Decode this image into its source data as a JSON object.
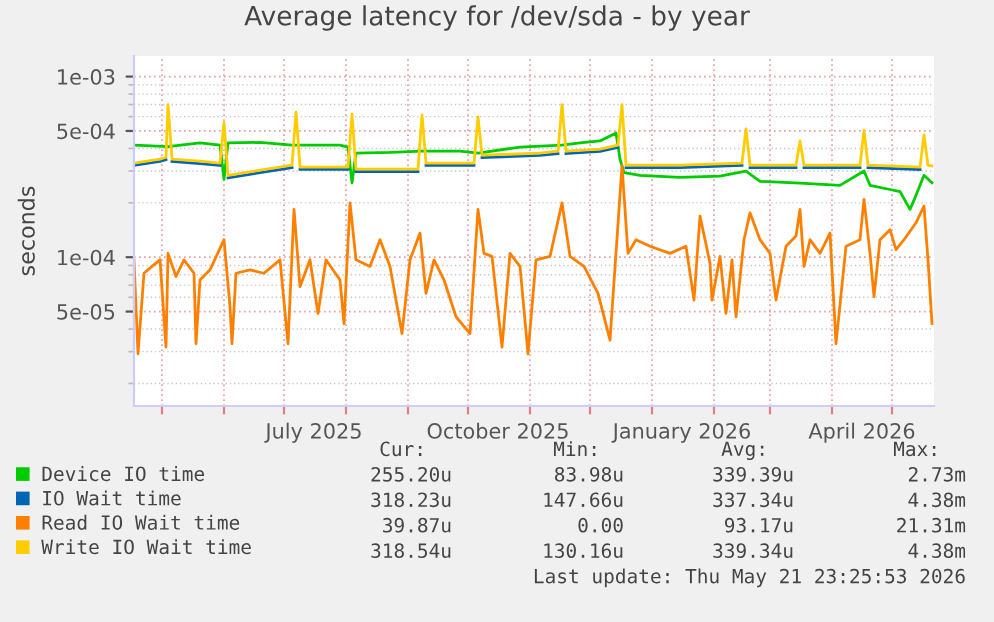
{
  "chart_data": {
    "type": "line",
    "title": "Average latency for /dev/sda - by year",
    "ylabel": "seconds",
    "log": "y",
    "grid": true,
    "legend": "bottom",
    "marker": "none",
    "line_style": "solid",
    "xlim": [
      "2025-04-17",
      "2026-05-22"
    ],
    "xticks": [
      {
        "value": "2025-05-01",
        "label": null
      },
      {
        "value": "2025-06-01",
        "label": null
      },
      {
        "value": "2025-07-01",
        "label": null
      },
      {
        "value": "2025-07-16",
        "label": "July 2025"
      },
      {
        "value": "2025-08-01",
        "label": null
      },
      {
        "value": "2025-09-01",
        "label": null
      },
      {
        "value": "2025-10-01",
        "label": null
      },
      {
        "value": "2025-10-16",
        "label": "October 2025"
      },
      {
        "value": "2025-11-01",
        "label": null
      },
      {
        "value": "2025-12-01",
        "label": null
      },
      {
        "value": "2026-01-01",
        "label": null
      },
      {
        "value": "2026-01-16",
        "label": "January 2026"
      },
      {
        "value": "2026-02-01",
        "label": null
      },
      {
        "value": "2026-03-01",
        "label": null
      },
      {
        "value": "2026-04-01",
        "label": null
      },
      {
        "value": "2026-04-16",
        "label": "April 2026"
      },
      {
        "value": "2026-05-01",
        "label": null
      }
    ],
    "ylim": [
      1.5e-05,
      0.0013
    ],
    "yticks": [
      {
        "value": 5e-05,
        "label": "5e-05"
      },
      {
        "value": 0.0001,
        "label": "1e-04"
      },
      {
        "value": 0.0005,
        "label": "5e-04"
      },
      {
        "value": 0.001,
        "label": "1e-03"
      }
    ],
    "series": [
      {
        "name": "Device IO time",
        "color": "#00cc00",
        "x": [
          "2025-04-17",
          "2025-05-04",
          "2025-05-20",
          "2025-05-30",
          "2025-06-01",
          "2025-06-03",
          "2025-06-19",
          "2025-07-05",
          "2025-07-09",
          "2025-07-29",
          "2025-08-02",
          "2025-08-04",
          "2025-08-06",
          "2025-08-23",
          "2025-09-08",
          "2025-09-27",
          "2025-10-06",
          "2025-10-27",
          "2025-11-17",
          "2025-11-26",
          "2025-12-06",
          "2025-12-14",
          "2025-12-16",
          "2025-12-18",
          "2025-12-26",
          "2026-01-15",
          "2026-02-04",
          "2026-02-17",
          "2026-02-24",
          "2026-03-16",
          "2026-04-05",
          "2026-04-17",
          "2026-04-20",
          "2026-04-30",
          "2026-05-05",
          "2026-05-10",
          "2026-05-13",
          "2026-05-17",
          "2026-05-21"
        ],
        "values": [
          0.000417,
          0.00041,
          0.000429,
          0.000417,
          0.00027,
          0.000429,
          0.000432,
          0.000417,
          0.000417,
          0.000417,
          0.000407,
          0.000258,
          0.000377,
          0.00038,
          0.000387,
          0.000387,
          0.000377,
          0.000407,
          0.000417,
          0.000429,
          0.00044,
          0.000487,
          0.000349,
          0.000294,
          0.000284,
          0.000277,
          0.000281,
          0.0003,
          0.000263,
          0.000257,
          0.00025,
          0.0003,
          0.00025,
          0.000237,
          0.000231,
          0.000184,
          0.00022,
          0.000284,
          0.000258
        ]
      },
      {
        "name": "IO Wait time",
        "color": "#0066b3",
        "x": [
          "2025-04-17",
          "2025-04-30",
          "2025-05-03",
          "2025-05-04",
          "2025-05-06",
          "2025-05-20",
          "2025-05-30",
          "2025-06-01",
          "2025-06-03",
          "2025-07-05",
          "2025-07-07",
          "2025-07-09",
          "2025-08-02",
          "2025-08-04",
          "2025-08-06",
          "2025-09-06",
          "2025-09-08",
          "2025-09-10",
          "2025-10-04",
          "2025-10-06",
          "2025-10-08",
          "2025-11-06",
          "2025-11-15",
          "2025-11-17",
          "2025-11-19",
          "2025-12-06",
          "2025-12-15",
          "2025-12-17",
          "2025-12-19",
          "2026-01-15",
          "2026-02-15",
          "2026-02-17",
          "2026-02-19",
          "2026-03-14",
          "2026-03-16",
          "2026-03-18",
          "2026-04-15",
          "2026-04-17",
          "2026-04-19",
          "2026-05-15"
        ],
        "values": [
          0.000322,
          0.000339,
          0.000347,
          null,
          0.000339,
          0.00033,
          0.000322,
          null,
          0.000275,
          0.000313,
          null,
          0.000306,
          0.000306,
          null,
          0.000298,
          0.000298,
          null,
          0.000322,
          0.000322,
          null,
          0.000356,
          0.000366,
          0.000375,
          null,
          0.000375,
          0.000385,
          0.000405,
          null,
          0.000313,
          0.000313,
          0.000322,
          null,
          0.000313,
          0.000313,
          null,
          0.000313,
          0.000313,
          null,
          0.000313,
          0.000306
        ]
      },
      {
        "name": "Read IO Wait time",
        "color": "#ff8000",
        "x": [
          "2025-04-17",
          "2025-04-19",
          "2025-04-22",
          "2025-04-26",
          "2025-04-30",
          "2025-05-03",
          "2025-05-04",
          "2025-05-08",
          "2025-05-12",
          "2025-05-17",
          "2025-05-18",
          "2025-05-20",
          "2025-05-25",
          "2025-06-01",
          "2025-06-04",
          "2025-06-05",
          "2025-06-07",
          "2025-06-14",
          "2025-06-21",
          "2025-06-29",
          "2025-07-03",
          "2025-07-06",
          "2025-07-09",
          "2025-07-14",
          "2025-07-18",
          "2025-07-22",
          "2025-07-29",
          "2025-07-31",
          "2025-08-03",
          "2025-08-06",
          "2025-08-13",
          "2025-08-18",
          "2025-08-23",
          "2025-08-29",
          "2025-09-02",
          "2025-09-07",
          "2025-09-10",
          "2025-09-14",
          "2025-09-19",
          "2025-09-25",
          "2025-10-02",
          "2025-10-06",
          "2025-10-09",
          "2025-10-13",
          "2025-10-18",
          "2025-10-22",
          "2025-10-27",
          "2025-10-31",
          "2025-11-04",
          "2025-11-11",
          "2025-11-17",
          "2025-11-21",
          "2025-11-28",
          "2025-12-05",
          "2025-12-11",
          "2025-12-17",
          "2025-12-20",
          "2025-12-24",
          "2025-12-31",
          "2026-01-10",
          "2026-01-18",
          "2026-01-22",
          "2026-01-25",
          "2026-01-30",
          "2026-01-31",
          "2026-02-04",
          "2026-02-07",
          "2026-02-10",
          "2026-02-12",
          "2026-02-16",
          "2026-02-19",
          "2026-02-24",
          "2026-03-01",
          "2026-03-04",
          "2026-03-09",
          "2026-03-14",
          "2026-03-16",
          "2026-03-18",
          "2026-03-21",
          "2026-03-26",
          "2026-03-31",
          "2026-04-03",
          "2026-04-08",
          "2026-04-15",
          "2026-04-17",
          "2026-04-20",
          "2026-04-22",
          "2026-04-25",
          "2026-04-30",
          "2026-05-03",
          "2026-05-07",
          "2026-05-13",
          "2026-05-17",
          "2026-05-19",
          "2026-05-21"
        ],
        "values": [
          9.67e-05,
          2.92e-05,
          8.15e-05,
          8.89e-05,
          9.67e-05,
          3.18e-05,
          0.000105,
          7.82e-05,
          9.67e-05,
          8.15e-05,
          3.32e-05,
          7.48e-05,
          8.51e-05,
          0.000125,
          5.32e-05,
          3.32e-05,
          8.15e-05,
          8.51e-05,
          8.15e-05,
          9.67e-05,
          3.32e-05,
          0.000184,
          6.87e-05,
          9.67e-05,
          4.88e-05,
          9.67e-05,
          7.48e-05,
          4.29e-05,
          0.0002,
          9.67e-05,
          8.89e-05,
          0.000125,
          8.89e-05,
          3.77e-05,
          9.67e-05,
          0.000136,
          6.3e-05,
          9.67e-05,
          7.48e-05,
          4.68e-05,
          3.77e-05,
          0.000184,
          0.000105,
          0.000101,
          3.18e-05,
          0.000105,
          8.89e-05,
          2.92e-05,
          9.67e-05,
          0.000101,
          0.0002,
          0.000101,
          8.89e-05,
          6.3e-05,
          3.47e-05,
          0.000321,
          0.000105,
          0.000125,
          0.000115,
          0.000105,
          0.000115,
          5.79e-05,
          0.000169,
          9.27e-05,
          5.79e-05,
          0.000101,
          4.88e-05,
          9.67e-05,
          4.68e-05,
          0.000125,
          0.000176,
          0.000125,
          0.000105,
          5.79e-05,
          0.000115,
          0.000131,
          0.000184,
          8.89e-05,
          0.000125,
          0.000105,
          0.000136,
          3.32e-05,
          0.000115,
          0.000125,
          0.000209,
          0.000105,
          6.05e-05,
          0.000125,
          0.000142,
          0.00011,
          0.000125,
          0.000155,
          0.000192,
          9.67e-05,
          4.29e-05
        ]
      },
      {
        "name": "Write IO Wait time",
        "color": "#ffcc00",
        "x": [
          "2025-04-17",
          "2025-04-30",
          "2025-05-03",
          "2025-05-04",
          "2025-05-06",
          "2025-05-20",
          "2025-05-30",
          "2025-06-01",
          "2025-06-03",
          "2025-07-05",
          "2025-07-07",
          "2025-07-09",
          "2025-08-02",
          "2025-08-04",
          "2025-08-06",
          "2025-09-06",
          "2025-09-08",
          "2025-09-10",
          "2025-10-04",
          "2025-10-06",
          "2025-10-08",
          "2025-11-06",
          "2025-11-15",
          "2025-11-17",
          "2025-11-19",
          "2025-12-06",
          "2025-12-15",
          "2025-12-17",
          "2025-12-19",
          "2026-01-15",
          "2026-02-15",
          "2026-02-17",
          "2026-02-19",
          "2026-03-14",
          "2026-03-16",
          "2026-03-18",
          "2026-04-15",
          "2026-04-17",
          "2026-04-19",
          "2026-05-15",
          "2026-05-17",
          "2026-05-19",
          "2026-05-21"
        ],
        "values": [
          0.000332,
          0.000349,
          0.000358,
          0.0007,
          0.000349,
          0.00034,
          0.000332,
          0.000558,
          0.000284,
          0.000323,
          0.000635,
          0.000315,
          0.000315,
          0.000619,
          0.000307,
          0.000307,
          0.000614,
          0.000332,
          0.000332,
          0.000598,
          0.000367,
          0.000377,
          0.000387,
          0.0007,
          0.000387,
          0.000397,
          0.000417,
          0.0007,
          0.000323,
          0.000323,
          0.000332,
          0.000513,
          0.000323,
          0.000323,
          0.00044,
          0.000323,
          0.000323,
          0.000504,
          0.000323,
          0.000315,
          0.000475,
          0.000323,
          0.00032
        ]
      }
    ],
    "annotations": [
      "Cur:",
      "Min:",
      "Avg:",
      "Max:",
      "255.20u",
      "83.98u",
      "339.39u",
      "2.73m",
      "318.23u",
      "147.66u",
      "337.34u",
      "4.38m",
      "39.87u",
      "0.00",
      "93.17u",
      "21.31m",
      "318.54u",
      "130.16u",
      "339.34u",
      "4.38m",
      "Last update: Thu May 21 23:25:53 2026"
    ]
  }
}
